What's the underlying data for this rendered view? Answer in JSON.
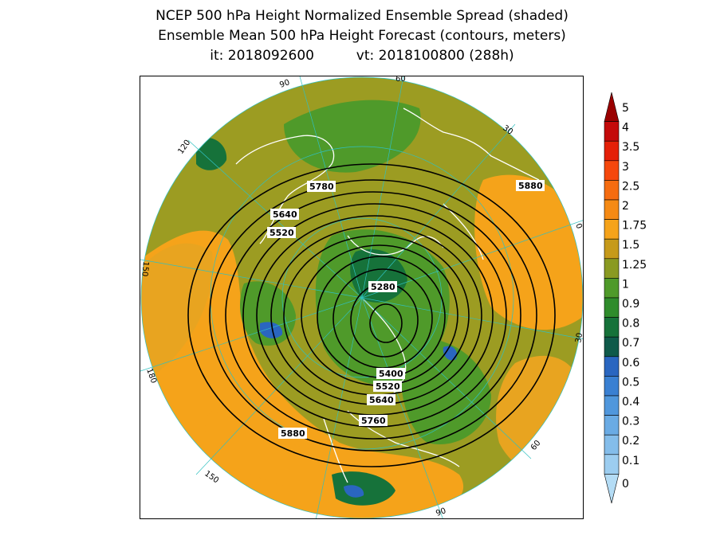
{
  "title": {
    "line1": "NCEP 500 hPa Height Normalized Ensemble Spread (shaded)",
    "line2": "Ensemble Mean 500 hPa Height Forecast (contours, meters)",
    "init_label": "it: 2018092600",
    "valid_label": "vt: 2018100800 (288h)"
  },
  "colorbar": {
    "levels": [
      "0",
      "0.1",
      "0.2",
      "0.3",
      "0.4",
      "0.5",
      "0.6",
      "0.7",
      "0.8",
      "0.9",
      "1",
      "1.25",
      "1.5",
      "1.75",
      "2",
      "2.5",
      "3",
      "3.5",
      "4",
      "5"
    ],
    "colors": [
      "#b4dcf5",
      "#9ccdf0",
      "#84bdea",
      "#6aabe4",
      "#5097dc",
      "#3a80d2",
      "#2a66c0",
      "#0f5a4a",
      "#16723a",
      "#2f8c2c",
      "#4f9a2a",
      "#8a9a22",
      "#c69a1a",
      "#f5a31a",
      "#f58a14",
      "#f56c10",
      "#f5470c",
      "#e42008",
      "#c40a0a",
      "#9a0000"
    ]
  },
  "spread_colors": {
    "orange": "#f5a31a",
    "light_orange": "#e8a420",
    "olive": "#9c9c22",
    "green": "#4f9a2a",
    "dark_green": "#16723a",
    "blue": "#2a66c0",
    "coast": "#ffffff",
    "graticule": "#30c0c0"
  },
  "contours": {
    "labels": [
      "5880",
      "5780",
      "5640",
      "5520",
      "5280",
      "5400",
      "5520",
      "5640",
      "5760",
      "5880"
    ]
  },
  "meridians": {
    "labels": [
      "90",
      "60",
      "30",
      "0",
      "30",
      "60",
      "90",
      "120",
      "150",
      "180",
      "150",
      "120"
    ]
  }
}
